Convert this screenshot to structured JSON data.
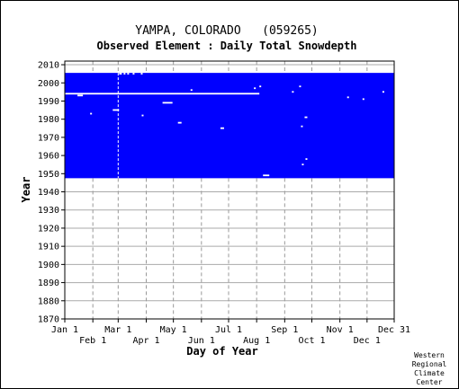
{
  "chart_data": {
    "type": "heatmap",
    "title": "YAMPA, COLORADO   (059265)",
    "subtitle": "Observed Element : Daily Total Snowdepth",
    "xlabel": "Day of Year",
    "ylabel": "Year",
    "xlim": [
      1,
      365
    ],
    "ylim": [
      1870,
      2012
    ],
    "x_ticks_top": [
      {
        "label": "Jan 1",
        "day": 1
      },
      {
        "label": "Mar 1",
        "day": 60
      },
      {
        "label": "May 1",
        "day": 121
      },
      {
        "label": "Jul 1",
        "day": 182
      },
      {
        "label": "Sep 1",
        "day": 244
      },
      {
        "label": "Nov 1",
        "day": 305
      },
      {
        "label": "Dec 31",
        "day": 365
      }
    ],
    "x_ticks_bottom": [
      {
        "label": "Feb 1",
        "day": 32
      },
      {
        "label": "Apr 1",
        "day": 91
      },
      {
        "label": "Jun 1",
        "day": 152
      },
      {
        "label": "Aug 1",
        "day": 213
      },
      {
        "label": "Oct 1",
        "day": 274
      },
      {
        "label": "Dec 1",
        "day": 335
      }
    ],
    "y_ticks": [
      1870,
      1880,
      1890,
      1900,
      1910,
      1920,
      1930,
      1940,
      1950,
      1960,
      1970,
      1980,
      1990,
      2000,
      2010
    ],
    "data_color": "#0000ff",
    "grid": true,
    "record_range": {
      "start_year": 1948,
      "end_year": 2005
    },
    "missing_marks": [
      {
        "year": 1994,
        "day_start": 1,
        "day_end": 216
      },
      {
        "year": 1993,
        "day_start": 15,
        "day_end": 21
      },
      {
        "year": 1985,
        "day_start": 54,
        "day_end": 61
      },
      {
        "year": 1989,
        "day_start": 109,
        "day_end": 120
      },
      {
        "year": 1978,
        "day_start": 126,
        "day_end": 130
      },
      {
        "year": 1975,
        "day_start": 173,
        "day_end": 177
      },
      {
        "year": 1949,
        "day_start": 220,
        "day_end": 227
      },
      {
        "year": 2005,
        "day_start": 61,
        "day_end": 64
      },
      {
        "year": 2005,
        "day_start": 66,
        "day_end": 68
      },
      {
        "year": 2005,
        "day_start": 70,
        "day_end": 72
      },
      {
        "year": 2005,
        "day_start": 76,
        "day_end": 78
      },
      {
        "year": 2005,
        "day_start": 85,
        "day_end": 87
      },
      {
        "year": 1997,
        "day_start": 210,
        "day_end": 212
      },
      {
        "year": 1998,
        "day_start": 216,
        "day_end": 218
      },
      {
        "year": 1998,
        "day_start": 260,
        "day_end": 262
      },
      {
        "year": 1995,
        "day_start": 252,
        "day_end": 254
      },
      {
        "year": 1992,
        "day_start": 313,
        "day_end": 315
      },
      {
        "year": 1991,
        "day_start": 330,
        "day_end": 332
      },
      {
        "year": 1995,
        "day_start": 352,
        "day_end": 354
      },
      {
        "year": 1981,
        "day_start": 266,
        "day_end": 269
      },
      {
        "year": 1976,
        "day_start": 262,
        "day_end": 264
      },
      {
        "year": 1958,
        "day_start": 267,
        "day_end": 269
      },
      {
        "year": 1955,
        "day_start": 263,
        "day_end": 265
      },
      {
        "year": 1983,
        "day_start": 29,
        "day_end": 31
      },
      {
        "year": 1982,
        "day_start": 86,
        "day_end": 88
      },
      {
        "year": 1996,
        "day_start": 140,
        "day_end": 142
      }
    ],
    "missing_column_day": 60,
    "credit": [
      "Western",
      "Regional",
      "Climate",
      "Center"
    ]
  }
}
